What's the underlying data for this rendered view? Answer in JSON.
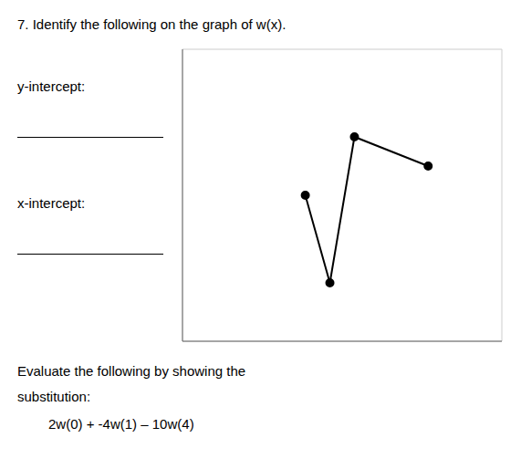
{
  "chart_data": {
    "type": "line",
    "title": "7. Identify the following on the graph of w(x).",
    "annotations": [
      "y-intercept:",
      "x-intercept:",
      "Evaluate the following by showing the",
      "substitution:",
      "2w(0) + -4w(1) – 10w(4)"
    ],
    "x": [
      -1,
      0,
      1,
      4
    ],
    "values": [
      0,
      -3,
      2,
      1
    ],
    "color": "#000000",
    "marker": "circle",
    "xlim": [
      -6,
      7
    ],
    "ylim": [
      -5,
      5
    ],
    "xticks": [
      -6,
      -5,
      -4,
      -3,
      -2,
      -1,
      0,
      1,
      2,
      3,
      4,
      5,
      6,
      7
    ],
    "yticks": [
      -5,
      -4,
      -3,
      -2,
      -1,
      0,
      1,
      2,
      3,
      4,
      5
    ],
    "grid": true,
    "tick_labels": false
  }
}
